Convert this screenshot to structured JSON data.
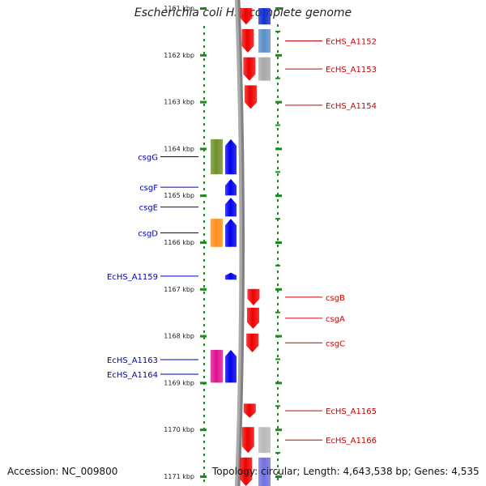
{
  "title": "Escherichia coli HS, complete genome",
  "footer": {
    "accession": "Accession: NC_009800",
    "topology": "Topology: circular; Length: 4,643,538 bp; Genes: 4,535"
  },
  "colors": {
    "forward": "#ee0000",
    "reverse": "#0000ee",
    "forward_label": "#cc0000",
    "reverse_label": "#0000bb",
    "backbone": "#808080",
    "axis": "#1a8a1a"
  },
  "axis": {
    "unit": "kbp",
    "ticks": [
      {
        "kbp": 1161,
        "label": "1161 kbp"
      },
      {
        "kbp": 1162,
        "label": "1162 kbp"
      },
      {
        "kbp": 1163,
        "label": "1163 kbp"
      },
      {
        "kbp": 1164,
        "label": "1164 kbp"
      },
      {
        "kbp": 1165,
        "label": "1165 kbp"
      },
      {
        "kbp": 1166,
        "label": "1166 kbp"
      },
      {
        "kbp": 1167,
        "label": "1167 kbp"
      },
      {
        "kbp": 1168,
        "label": "1168 kbp"
      },
      {
        "kbp": 1169,
        "label": "1169 kbp"
      },
      {
        "kbp": 1170,
        "label": "1170 kbp"
      },
      {
        "kbp": 1171,
        "label": "1171 kbp"
      }
    ]
  },
  "forward_genes": [
    {
      "start": 1161.0,
      "end": 1161.35,
      "label": "",
      "name_color": "#ee0000"
    },
    {
      "start": 1161.45,
      "end": 1161.95,
      "label": "EcHS_A1152"
    },
    {
      "start": 1162.05,
      "end": 1162.55,
      "label": "EcHS_A1153"
    },
    {
      "start": 1162.65,
      "end": 1163.15,
      "label": "EcHS_A1154"
    },
    {
      "start": 1167.0,
      "end": 1167.35,
      "label": "csgB"
    },
    {
      "start": 1167.4,
      "end": 1167.85,
      "label": "csgA"
    },
    {
      "start": 1167.95,
      "end": 1168.35,
      "label": "csgC"
    },
    {
      "start": 1169.45,
      "end": 1169.75,
      "label": "EcHS_A1165"
    },
    {
      "start": 1169.95,
      "end": 1170.5,
      "label": "EcHS_A1166"
    },
    {
      "start": 1170.6,
      "end": 1171.3,
      "label": ""
    }
  ],
  "forward_annotations": [
    {
      "start": 1161.0,
      "end": 1161.35,
      "color": "#1030d0"
    },
    {
      "start": 1161.45,
      "end": 1161.95,
      "color": "#5a8fc8"
    },
    {
      "start": 1162.05,
      "end": 1162.55,
      "color": "#a8a8a8"
    },
    {
      "start": 1169.95,
      "end": 1170.5,
      "color": "#b8b8b8"
    },
    {
      "start": 1170.6,
      "end": 1171.3,
      "color": "#7070e0"
    }
  ],
  "reverse_genes": [
    {
      "start": 1163.8,
      "end": 1164.55,
      "label": "csgG"
    },
    {
      "start": 1164.65,
      "end": 1165.0,
      "label": "csgF"
    },
    {
      "start": 1165.05,
      "end": 1165.45,
      "label": "csgE"
    },
    {
      "start": 1165.5,
      "end": 1166.1,
      "label": "csgD"
    },
    {
      "start": 1166.65,
      "end": 1166.8,
      "label": "EcHS_A1159"
    },
    {
      "start": 1168.3,
      "end": 1169.0,
      "label": "EcHS_A1163"
    },
    {
      "start": 1168.3,
      "end": 1169.0,
      "label": "EcHS_A1164",
      "second_label_only": true
    }
  ],
  "reverse_annotations": [
    {
      "start": 1163.8,
      "end": 1164.55,
      "color": "#6f8f2a"
    },
    {
      "start": 1165.5,
      "end": 1166.1,
      "color": "#ff8c1a"
    },
    {
      "start": 1168.3,
      "end": 1169.0,
      "color": "#e0108f"
    }
  ]
}
